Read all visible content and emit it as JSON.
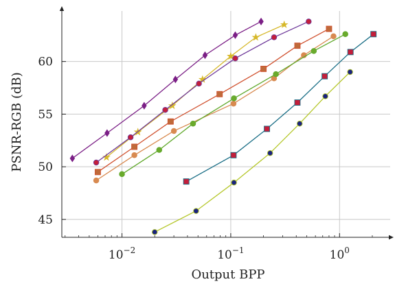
{
  "chart_data": {
    "type": "line",
    "xlabel": "Output BPP",
    "ylabel": "PSNR-RGB (dB)",
    "xscale": "log",
    "xlim": [
      0.0028,
      2.6
    ],
    "ylim": [
      43.3,
      64.8
    ],
    "grid": true,
    "legend": "none",
    "x_ticks": [
      {
        "value": 0.01,
        "base": "10",
        "exp": "−2"
      },
      {
        "value": 0.1,
        "base": "10",
        "exp": "−1"
      },
      {
        "value": 1,
        "base": "10",
        "exp": "0"
      }
    ],
    "y_ticks": [
      {
        "value": 45,
        "label": "45"
      },
      {
        "value": 50,
        "label": "50"
      },
      {
        "value": 55,
        "label": "55"
      },
      {
        "value": 60,
        "label": "60"
      }
    ],
    "series": [
      {
        "color": "#7b1f86",
        "marker": "diamond",
        "marker_color": "#7b1f86",
        "x": [
          0.0035,
          0.0073,
          0.016,
          0.031,
          0.058,
          0.11,
          0.19
        ],
        "y": [
          50.8,
          53.2,
          55.8,
          58.3,
          60.6,
          62.5,
          63.8
        ]
      },
      {
        "color": "#d6b82a",
        "marker": "star",
        "marker_color": "#d6b82a",
        "x": [
          0.0072,
          0.014,
          0.029,
          0.055,
          0.1,
          0.17,
          0.31
        ],
        "y": [
          50.9,
          53.3,
          55.8,
          58.3,
          60.5,
          62.3,
          63.5
        ]
      },
      {
        "color": "#6f3a9a",
        "marker": "circle",
        "marker_color": "#c41e3a",
        "x": [
          0.0058,
          0.012,
          0.025,
          0.051,
          0.11,
          0.25,
          0.52
        ],
        "y": [
          50.4,
          52.8,
          55.4,
          57.9,
          60.3,
          62.3,
          63.8
        ]
      },
      {
        "color": "#d0502e",
        "marker": "square",
        "marker_color": "#bf6a3a",
        "x": [
          0.006,
          0.013,
          0.028,
          0.079,
          0.2,
          0.41,
          0.8
        ],
        "y": [
          49.5,
          51.9,
          54.3,
          56.9,
          59.3,
          61.5,
          63.1
        ]
      },
      {
        "color": "#d88a50",
        "marker": "circle",
        "marker_color": "#d88a50",
        "x": [
          0.0058,
          0.013,
          0.03,
          0.106,
          0.25,
          0.47,
          0.88
        ],
        "y": [
          48.7,
          51.1,
          53.4,
          56.0,
          58.4,
          60.6,
          62.4
        ]
      },
      {
        "color": "#5fa82a",
        "marker": "circle",
        "marker_color": "#6aaa2c",
        "x": [
          0.01,
          0.022,
          0.045,
          0.107,
          0.26,
          0.58,
          1.13
        ],
        "y": [
          49.3,
          51.6,
          54.1,
          56.5,
          58.8,
          61.0,
          62.6
        ]
      },
      {
        "color": "#1a6e86",
        "marker": "square",
        "marker_color": "#c41e3a",
        "x": [
          0.039,
          0.106,
          0.215,
          0.41,
          0.73,
          1.26,
          2.05
        ],
        "y": [
          48.6,
          51.1,
          53.6,
          56.1,
          58.6,
          60.9,
          62.6
        ]
      },
      {
        "color": "#b5c72a",
        "marker": "circle",
        "marker_color": "#1a237e",
        "x": [
          0.02,
          0.048,
          0.107,
          0.23,
          0.43,
          0.74,
          1.25
        ],
        "y": [
          43.8,
          45.8,
          48.5,
          51.3,
          54.1,
          56.7,
          59.0
        ]
      }
    ]
  }
}
